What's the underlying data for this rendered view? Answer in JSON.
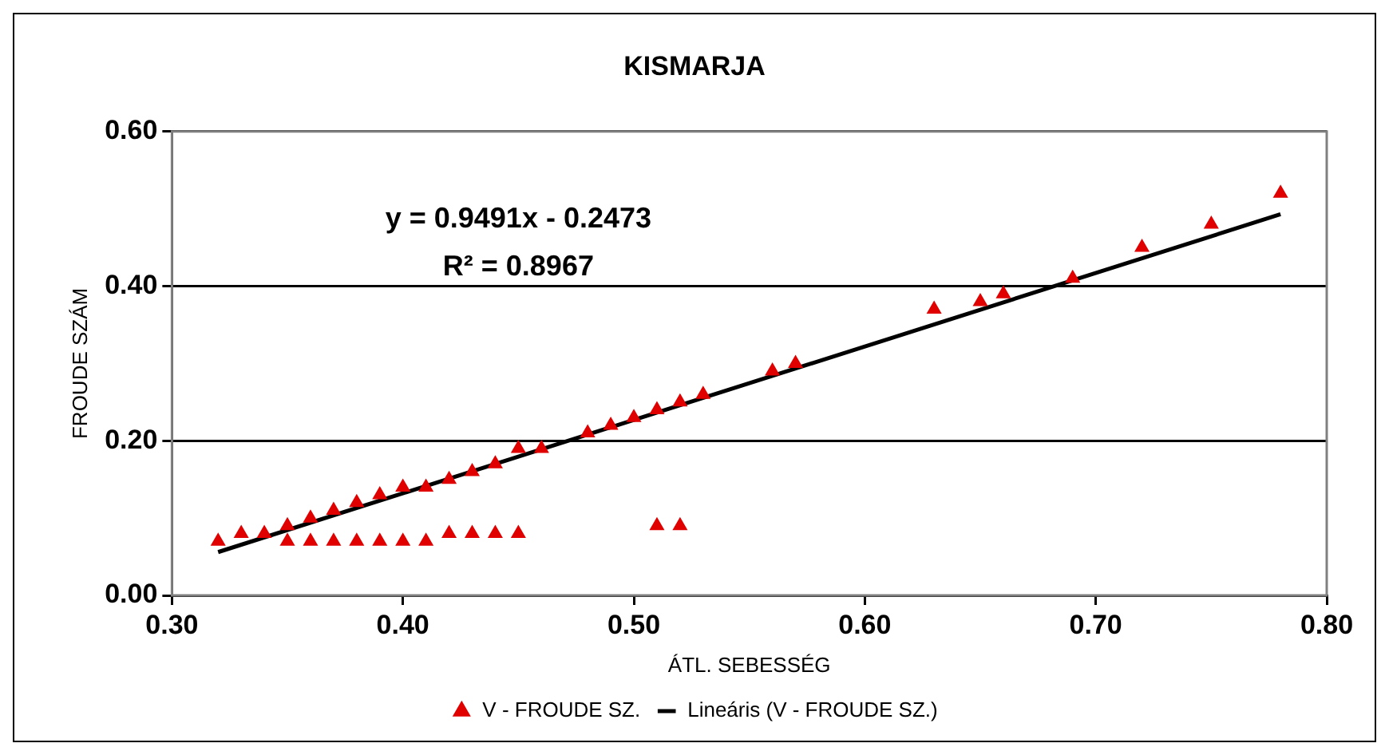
{
  "chart_data": {
    "type": "scatter",
    "title": "KISMARJA",
    "xlabel": "ÁTL. SEBESSÉG",
    "ylabel": "FROUDE SZÁM",
    "annotations": [
      "y = 0.9491x - 0.2473",
      "R² = 0.8967"
    ],
    "xlim": [
      0.3,
      0.8
    ],
    "xticks": [
      {
        "value": 0.3,
        "label": "0.30"
      },
      {
        "value": 0.4,
        "label": "0.40"
      },
      {
        "value": 0.5,
        "label": "0.50"
      },
      {
        "value": 0.6,
        "label": "0.60"
      },
      {
        "value": 0.7,
        "label": "0.70"
      },
      {
        "value": 0.8,
        "label": "0.80"
      }
    ],
    "ylim": [
      0,
      0.6
    ],
    "yticks": [
      {
        "value": 0,
        "label": "0.00"
      },
      {
        "value": 0.2,
        "label": "0.20"
      },
      {
        "value": 0.4,
        "label": "0.40"
      },
      {
        "value": 0.6,
        "label": "0.60"
      }
    ],
    "grid": "y",
    "legend": "bottom",
    "marker": "triangle",
    "series": [
      {
        "name": "V - FROUDE SZ.",
        "color": "#e00000",
        "x": [
          0.32,
          0.33,
          0.34,
          0.35,
          0.36,
          0.37,
          0.38,
          0.39,
          0.4,
          0.41,
          0.42,
          0.43,
          0.44,
          0.45,
          0.46,
          0.48,
          0.49,
          0.5,
          0.51,
          0.52,
          0.53,
          0.56,
          0.57,
          0.63,
          0.65,
          0.66,
          0.69,
          0.72,
          0.75,
          0.78,
          0.35,
          0.36,
          0.37,
          0.38,
          0.39,
          0.4,
          0.41,
          0.42,
          0.43,
          0.44,
          0.45,
          0.51,
          0.52
        ],
        "values": [
          0.07,
          0.08,
          0.08,
          0.09,
          0.1,
          0.11,
          0.12,
          0.13,
          0.14,
          0.14,
          0.15,
          0.16,
          0.17,
          0.19,
          0.19,
          0.21,
          0.22,
          0.23,
          0.24,
          0.25,
          0.26,
          0.29,
          0.3,
          0.37,
          0.38,
          0.39,
          0.41,
          0.45,
          0.48,
          0.52,
          0.07,
          0.07,
          0.07,
          0.07,
          0.07,
          0.07,
          0.07,
          0.08,
          0.08,
          0.08,
          0.08,
          0.09,
          0.09
        ]
      },
      {
        "name": "Lineáris (V - FROUDE SZ.)",
        "type": "line",
        "color": "#000000",
        "line_style": "solid",
        "marker": "none",
        "x": [
          0.32,
          0.78
        ],
        "values": [
          0.056,
          0.493
        ]
      }
    ]
  }
}
